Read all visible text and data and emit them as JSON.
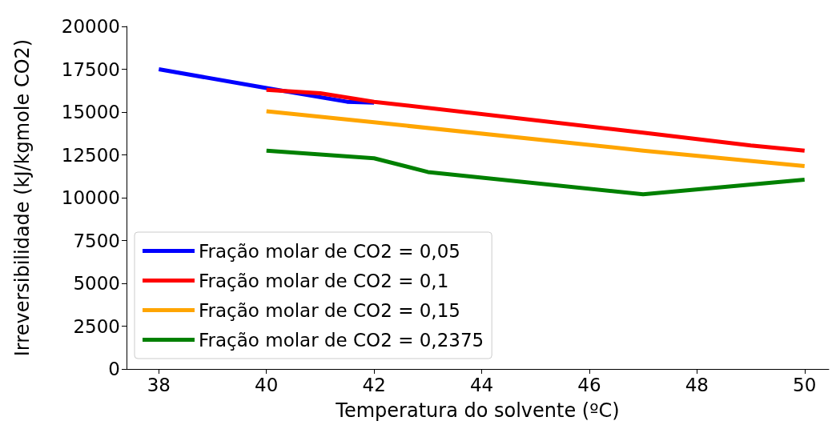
{
  "chart_data": {
    "type": "line",
    "xlabel": "Temperatura do solvente (ºC)",
    "ylabel": "Irreversibilidade (kJ/kgmole CO2)",
    "xlim": [
      37.4,
      50.45
    ],
    "xticks": [
      38,
      40,
      42,
      44,
      46,
      48,
      50
    ],
    "ylim": [
      0,
      20000
    ],
    "yticks": [
      0,
      2500,
      5000,
      7500,
      10000,
      12500,
      15000,
      17500,
      20000
    ],
    "grid": false,
    "legend": "bottom left",
    "marker": "none",
    "line_style": "solid",
    "series": [
      {
        "name": "Fração molar de CO2 = 0,05",
        "color": "#0000ff",
        "x": [
          38,
          40,
          41.5,
          42
        ],
        "values": [
          17500,
          16400,
          15600,
          15550
        ]
      },
      {
        "name": "Fração molar de CO2 = 0,1",
        "color": "#ff0000",
        "x": [
          40,
          41,
          42,
          47,
          49,
          50
        ],
        "values": [
          16300,
          16100,
          15600,
          13800,
          13050,
          12750
        ]
      },
      {
        "name": "Fração molar de CO2 = 0,15",
        "color": "#ffa500",
        "x": [
          40,
          42,
          47,
          50
        ],
        "values": [
          15050,
          14400,
          12750,
          11850
        ]
      },
      {
        "name": "Fração molar de CO2 = 0,2375",
        "color": "#008000",
        "x": [
          40,
          42,
          43,
          47,
          50
        ],
        "values": [
          12750,
          12300,
          11500,
          10200,
          11050
        ]
      }
    ]
  }
}
